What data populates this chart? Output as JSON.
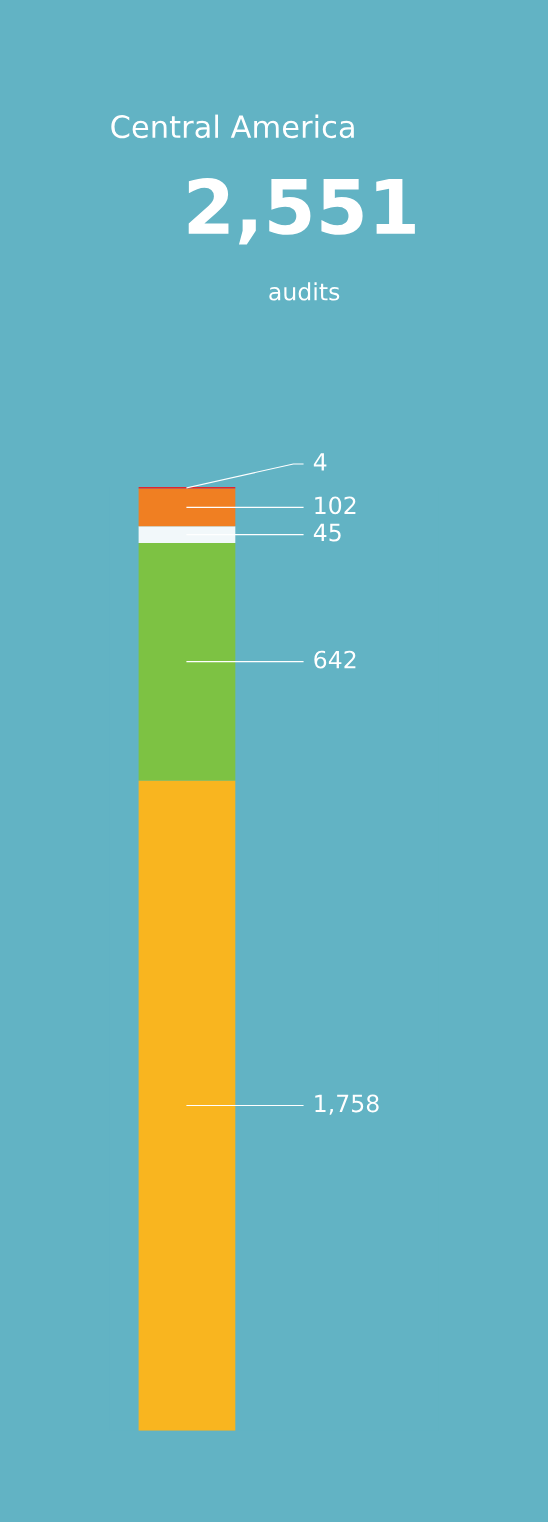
{
  "chart_data": {
    "type": "bar",
    "title": "Central America",
    "subtitle": "2,551",
    "annotations": [
      "audits"
    ],
    "categories": [
      null
    ],
    "stacked": true,
    "tick_labels": false,
    "series": [
      {
        "color": "#f9b51f",
        "values": [
          1758
        ],
        "value_labels": [
          "1,758"
        ]
      },
      {
        "color": "#7dc243",
        "values": [
          642
        ],
        "value_labels": [
          "642"
        ]
      },
      {
        "color": "#f2f8fa",
        "values": [
          45
        ],
        "value_labels": [
          "45"
        ]
      },
      {
        "color": "#f07f22",
        "values": [
          102
        ],
        "value_labels": [
          "102"
        ]
      },
      {
        "color": "#e2262b",
        "values": [
          4
        ],
        "value_labels": [
          "4"
        ]
      }
    ]
  }
}
